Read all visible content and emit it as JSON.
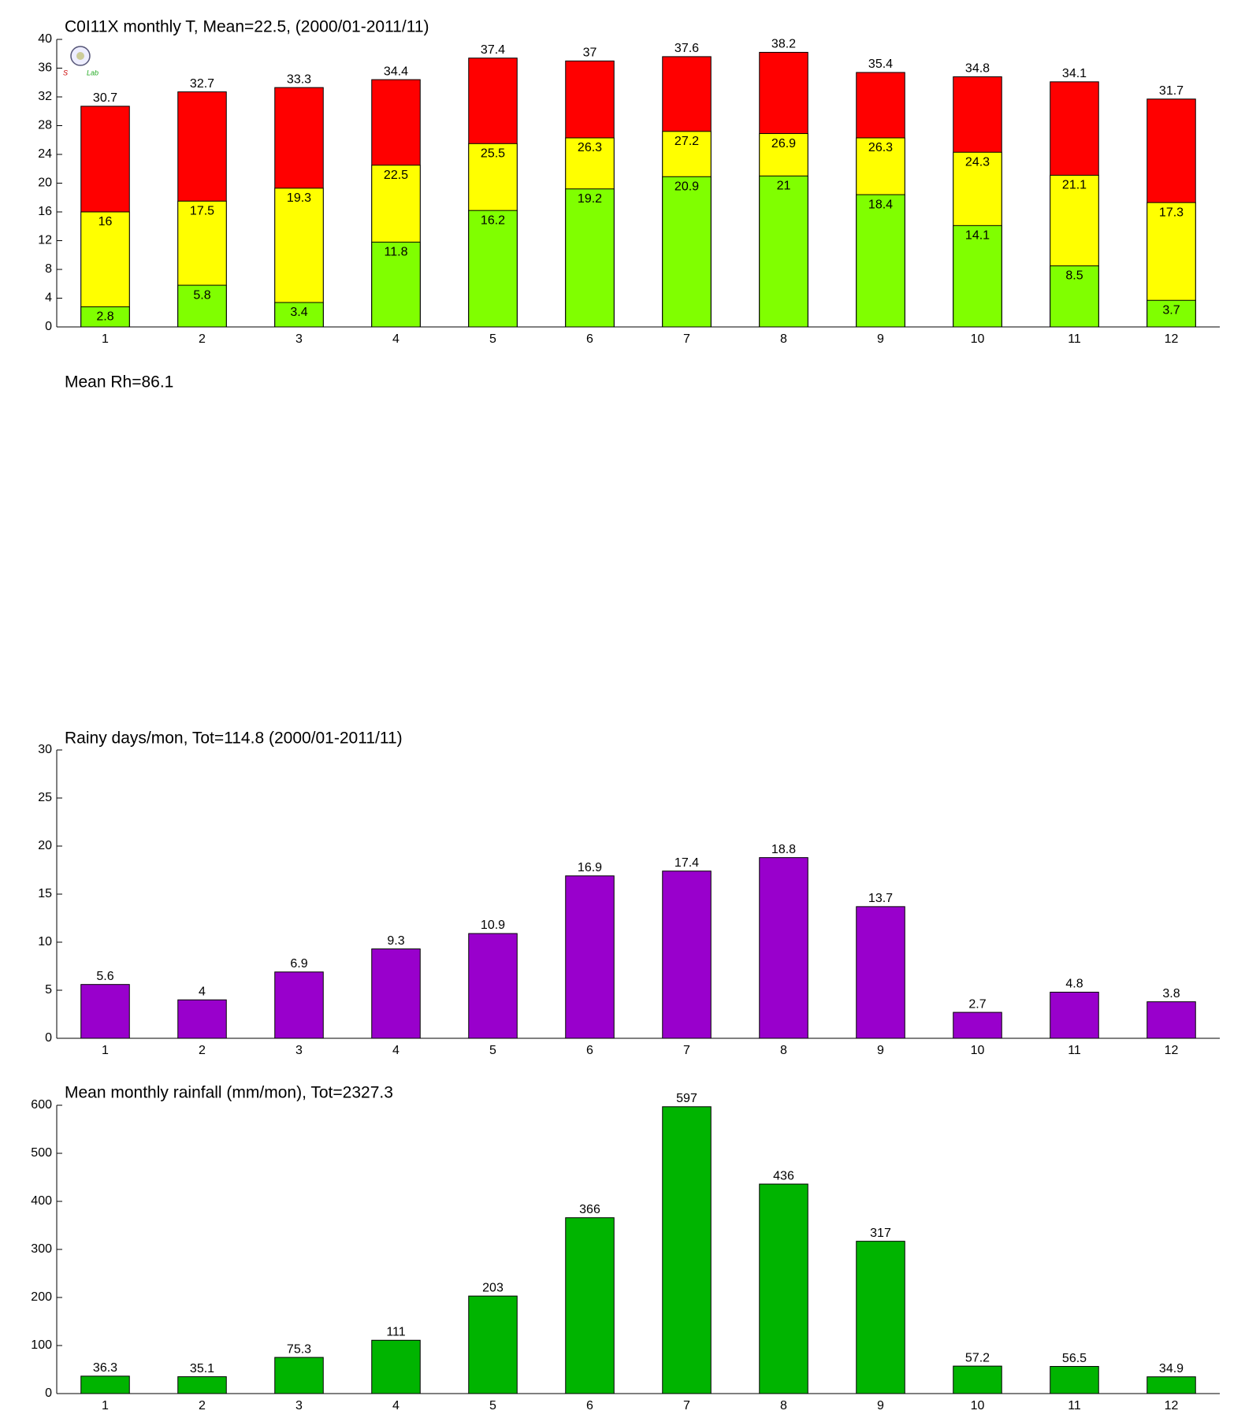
{
  "chart_data": [
    {
      "type": "bar",
      "title": "C0I11X monthly T, Mean=22.5, (2000/01-2011/11)",
      "categories": [
        "1",
        "2",
        "3",
        "4",
        "5",
        "6",
        "7",
        "8",
        "9",
        "10",
        "11",
        "12"
      ],
      "series": [
        {
          "color": "#ff0000",
          "values": [
            30.7,
            32.7,
            33.3,
            34.4,
            37.4,
            37,
            37.6,
            38.2,
            35.4,
            34.8,
            34.1,
            31.7
          ]
        },
        {
          "color": "#ffff00",
          "values": [
            16,
            17.5,
            19.3,
            22.5,
            25.5,
            26.3,
            27.2,
            26.9,
            26.3,
            24.3,
            21.1,
            17.3
          ]
        },
        {
          "color": "#80ff00",
          "values": [
            2.8,
            5.8,
            3.4,
            11.8,
            16.2,
            19.2,
            20.9,
            21,
            18.4,
            14.1,
            8.5,
            3.7
          ]
        }
      ],
      "ylim": [
        0,
        40
      ],
      "yticks": [
        0,
        4,
        8,
        12,
        16,
        20,
        24,
        28,
        32,
        36,
        40
      ]
    },
    {
      "title": "Mean Rh=86.1"
    },
    {
      "type": "bar",
      "title": "Rainy days/mon, Tot=114.8 (2000/01-2011/11)",
      "categories": [
        "1",
        "2",
        "3",
        "4",
        "5",
        "6",
        "7",
        "8",
        "9",
        "10",
        "11",
        "12"
      ],
      "series": [
        {
          "color": "#9900cc",
          "values": [
            5.6,
            4,
            6.9,
            9.3,
            10.9,
            16.9,
            17.4,
            18.8,
            13.7,
            2.7,
            4.8,
            3.8
          ]
        }
      ],
      "ylim": [
        0,
        30
      ],
      "yticks": [
        0,
        5,
        10,
        15,
        20,
        25,
        30
      ]
    },
    {
      "type": "bar",
      "title": "Mean monthly rainfall (mm/mon), Tot=2327.3",
      "categories": [
        "1",
        "2",
        "3",
        "4",
        "5",
        "6",
        "7",
        "8",
        "9",
        "10",
        "11",
        "12"
      ],
      "series": [
        {
          "color": "#00b400",
          "values": [
            36.3,
            35.1,
            75.3,
            111,
            203,
            366,
            597,
            436,
            317,
            57.2,
            56.5,
            34.9
          ]
        }
      ],
      "ylim": [
        0,
        600
      ],
      "yticks": [
        0,
        100,
        200,
        300,
        400,
        500,
        600
      ]
    }
  ]
}
